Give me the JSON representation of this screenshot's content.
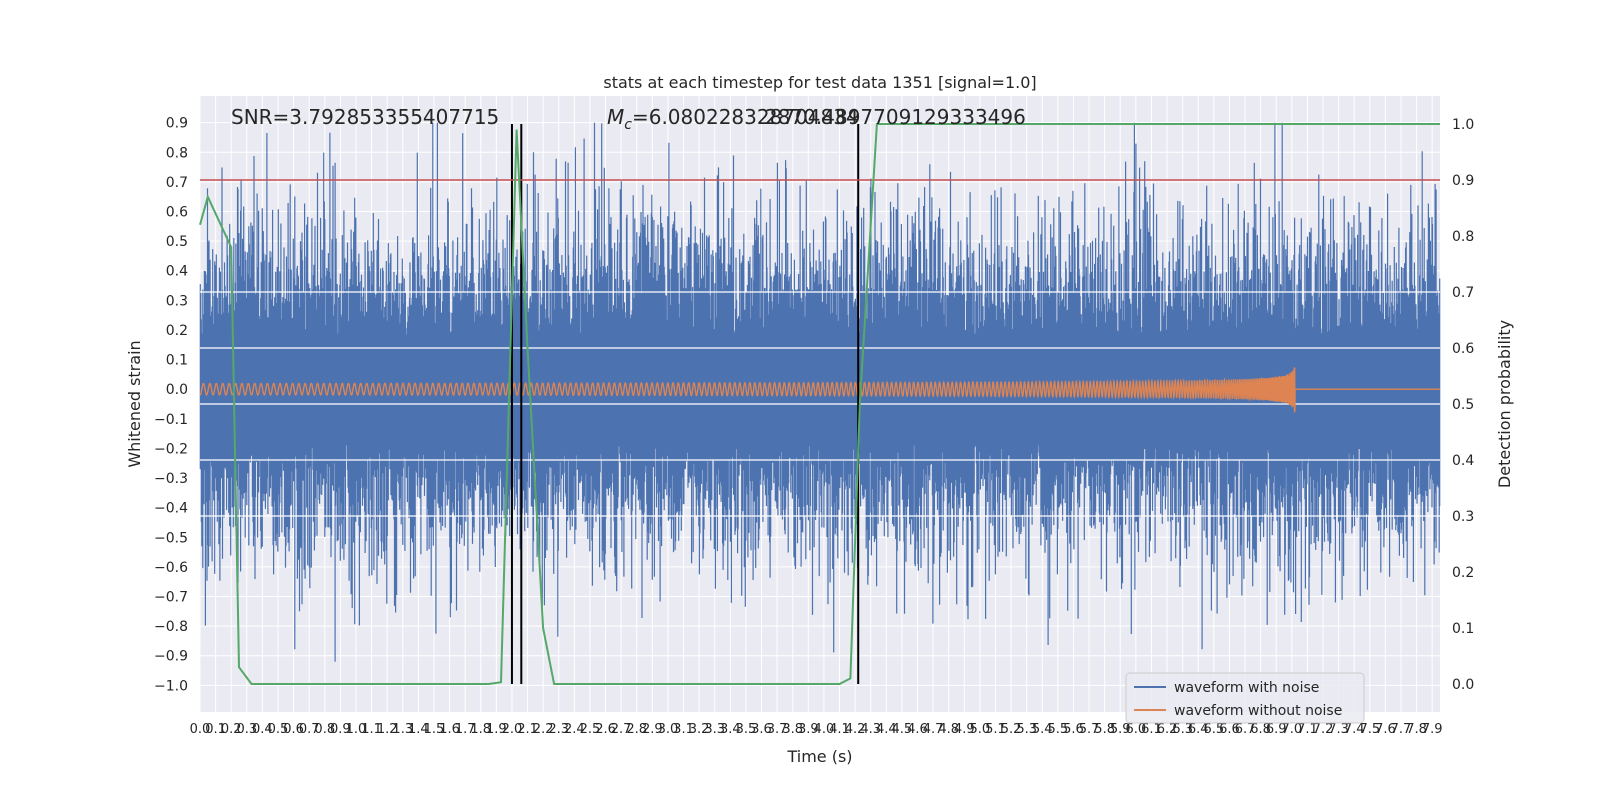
{
  "chart_data": {
    "type": "line",
    "title": "stats at each timestep for test data 1351 [signal=1.0]",
    "xlabel": "Time (s)",
    "ylabel_left": "Whitened strain",
    "ylabel_right": "Detection probability",
    "xlim": [
      0.0,
      7.95
    ],
    "ylim_left": [
      -1.09,
      0.99
    ],
    "ylim_right": [
      -0.05,
      1.05
    ],
    "x_ticks": [
      "0.0",
      "0.1",
      "0.2",
      "0.3",
      "0.4",
      "0.5",
      "0.6",
      "0.7",
      "0.8",
      "0.9",
      "1.0",
      "1.1",
      "1.2",
      "1.3",
      "1.4",
      "1.5",
      "1.6",
      "1.7",
      "1.8",
      "1.9",
      "2.0",
      "2.1",
      "2.2",
      "2.3",
      "2.4",
      "2.5",
      "2.6",
      "2.7",
      "2.8",
      "2.9",
      "3.0",
      "3.1",
      "3.2",
      "3.3",
      "3.4",
      "3.5",
      "3.6",
      "3.7",
      "3.8",
      "3.9",
      "4.0",
      "4.1",
      "4.2",
      "4.3",
      "4.4",
      "4.5",
      "4.6",
      "4.7",
      "4.8",
      "4.9",
      "5.0",
      "5.1",
      "5.2",
      "5.3",
      "5.4",
      "5.5",
      "5.6",
      "5.7",
      "5.8",
      "5.9",
      "6.0",
      "6.1",
      "6.2",
      "6.3",
      "6.4",
      "6.5",
      "6.6",
      "6.7",
      "6.8",
      "6.9",
      "7.0",
      "7.1",
      "7.2",
      "7.3",
      "7.4",
      "7.5",
      "7.6",
      "7.7",
      "7.8",
      "7.9"
    ],
    "y_ticks_left": [
      "0.9",
      "0.8",
      "0.7",
      "0.6",
      "0.5",
      "0.4",
      "0.3",
      "0.2",
      "0.1",
      "0.0",
      "−0.1",
      "−0.2",
      "−0.3",
      "−0.4",
      "−0.5",
      "−0.6",
      "−0.7",
      "−0.8",
      "−0.9",
      "−1.0"
    ],
    "y_ticks_right": [
      "1.0",
      "0.9",
      "0.8",
      "0.7",
      "0.6",
      "0.5",
      "0.4",
      "0.3",
      "0.2",
      "0.1",
      "0.0"
    ],
    "annotations": {
      "snr": "SNR=3.792853355407715",
      "mc_prefix": "M",
      "mc_sub": "c",
      "mc_value": "=6.080228328704834",
      "overlap": "2870.4897709129333496"
    },
    "threshold_line": {
      "value": 0.9,
      "axis": "right",
      "color": "#c44e52"
    },
    "vertical_lines": [
      2.0,
      2.06,
      4.22
    ],
    "series": [
      {
        "name": "waveform with noise",
        "axis": "left",
        "color": "#4c72b0",
        "typical_amplitude": 0.45,
        "peak_amplitude": 0.9
      },
      {
        "name": "waveform without noise",
        "axis": "left",
        "color": "#dd8452",
        "merger_time": 7.02,
        "merger_amplitude": 0.17
      },
      {
        "name": "detection probability",
        "axis": "right",
        "color": "#55a868",
        "x": [
          0.0,
          0.05,
          0.2,
          0.25,
          0.33,
          0.5,
          1.5,
          1.85,
          1.93,
          2.03,
          2.1,
          2.2,
          2.27,
          2.4,
          3.8,
          4.1,
          4.17,
          4.23,
          4.34,
          4.4,
          7.95
        ],
        "y": [
          0.82,
          0.87,
          0.78,
          0.03,
          0.0,
          0.0,
          0.0,
          0.0,
          0.003,
          0.99,
          0.6,
          0.1,
          0.0,
          0.0,
          0.0,
          0.0,
          0.01,
          0.5,
          1.0,
          1.0,
          1.0
        ]
      }
    ],
    "legend": {
      "position": "lower-right",
      "entries": [
        {
          "label": "waveform with noise",
          "color": "#4c72b0"
        },
        {
          "label": "waveform without noise",
          "color": "#dd8452"
        }
      ]
    },
    "colors": {
      "plot_background": "#eaeaf2",
      "grid": "#ffffff",
      "text": "#262626",
      "vline": "#000000"
    }
  }
}
